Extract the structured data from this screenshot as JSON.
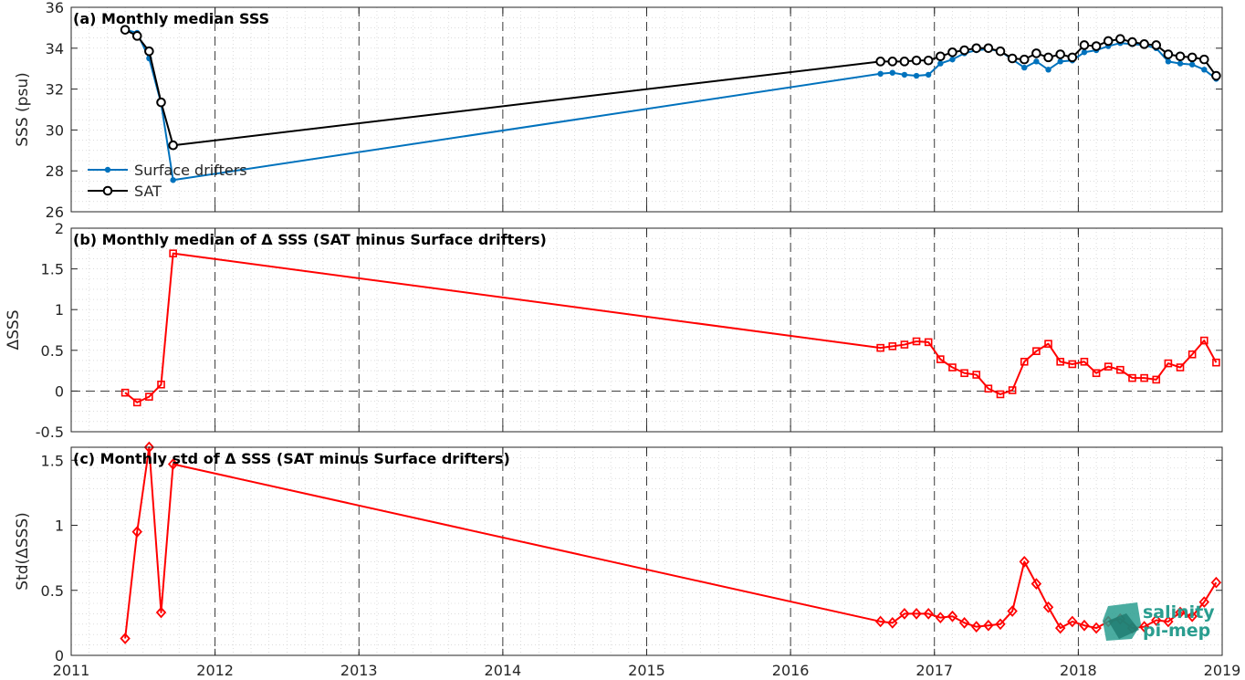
{
  "chart_data": [
    {
      "type": "line",
      "panel": "a",
      "title": "(a) Monthly median SSS",
      "xlabel": "",
      "ylabel": "SSS (psu)",
      "xlim": [
        "2011",
        "2019"
      ],
      "ylim": [
        26,
        36
      ],
      "yticks": [
        "26",
        "28",
        "30",
        "32",
        "34",
        "36"
      ],
      "grid": true,
      "legend": "left-center",
      "series": [
        {
          "name": "Surface drifters",
          "color": "#0072BD",
          "marker": "dot",
          "x": [
            "2011-05",
            "2011-06",
            "2011-07",
            "2011-08",
            "2011-09",
            "2016-08",
            "2016-09",
            "2016-10",
            "2016-11",
            "2016-12",
            "2017-01",
            "2017-02",
            "2017-03",
            "2017-04",
            "2017-05",
            "2017-06",
            "2017-07",
            "2017-08",
            "2017-09",
            "2017-10",
            "2017-11",
            "2017-12",
            "2018-01",
            "2018-02",
            "2018-03",
            "2018-04",
            "2018-05",
            "2018-06",
            "2018-07",
            "2018-08",
            "2018-09",
            "2018-10",
            "2018-11",
            "2018-12"
          ],
          "y": [
            34.9,
            34.75,
            33.5,
            31.3,
            27.55,
            32.75,
            32.8,
            32.7,
            32.65,
            32.7,
            33.25,
            33.45,
            33.75,
            33.9,
            33.95,
            33.85,
            33.45,
            33.05,
            33.35,
            32.95,
            33.35,
            33.4,
            33.8,
            33.9,
            34.1,
            34.25,
            34.2,
            34.15,
            34.0,
            33.35,
            33.25,
            33.2,
            32.95,
            32.5
          ]
        },
        {
          "name": "SAT",
          "color": "#000000",
          "marker": "circle",
          "x": [
            "2011-05",
            "2011-06",
            "2011-07",
            "2011-08",
            "2011-09",
            "2016-08",
            "2016-09",
            "2016-10",
            "2016-11",
            "2016-12",
            "2017-01",
            "2017-02",
            "2017-03",
            "2017-04",
            "2017-05",
            "2017-06",
            "2017-07",
            "2017-08",
            "2017-09",
            "2017-10",
            "2017-11",
            "2017-12",
            "2018-01",
            "2018-02",
            "2018-03",
            "2018-04",
            "2018-05",
            "2018-06",
            "2018-07",
            "2018-08",
            "2018-09",
            "2018-10",
            "2018-11",
            "2018-12"
          ],
          "y": [
            34.9,
            34.6,
            33.85,
            31.35,
            29.25,
            33.35,
            33.35,
            33.35,
            33.4,
            33.4,
            33.6,
            33.8,
            33.9,
            34.0,
            34.0,
            33.85,
            33.5,
            33.45,
            33.75,
            33.55,
            33.7,
            33.55,
            34.15,
            34.1,
            34.35,
            34.45,
            34.3,
            34.2,
            34.15,
            33.7,
            33.6,
            33.55,
            33.45,
            32.65
          ]
        }
      ]
    },
    {
      "type": "line",
      "panel": "b",
      "title": "(b) Monthly median of Δ SSS (SAT minus Surface drifters)",
      "xlabel": "",
      "ylabel": "ΔSSS",
      "xlim": [
        "2011",
        "2019"
      ],
      "ylim": [
        -0.5,
        2
      ],
      "yticks": [
        "-0.5",
        "0",
        "0.5",
        "1",
        "1.5",
        "2"
      ],
      "grid": true,
      "series": [
        {
          "color": "#FF0000",
          "marker": "square",
          "x": [
            "2011-05",
            "2011-06",
            "2011-07",
            "2011-08",
            "2011-09",
            "2016-08",
            "2016-09",
            "2016-10",
            "2016-11",
            "2016-12",
            "2017-01",
            "2017-02",
            "2017-03",
            "2017-04",
            "2017-05",
            "2017-06",
            "2017-07",
            "2017-08",
            "2017-09",
            "2017-10",
            "2017-11",
            "2017-12",
            "2018-01",
            "2018-02",
            "2018-03",
            "2018-04",
            "2018-05",
            "2018-06",
            "2018-07",
            "2018-08",
            "2018-09",
            "2018-10",
            "2018-11",
            "2018-12"
          ],
          "y": [
            -0.02,
            -0.14,
            -0.07,
            0.08,
            1.69,
            0.53,
            0.55,
            0.57,
            0.61,
            0.6,
            0.39,
            0.29,
            0.22,
            0.2,
            0.03,
            -0.04,
            0.01,
            0.36,
            0.49,
            0.58,
            0.36,
            0.33,
            0.36,
            0.22,
            0.3,
            0.26,
            0.16,
            0.16,
            0.14,
            0.34,
            0.29,
            0.45,
            0.62,
            0.35
          ]
        }
      ]
    },
    {
      "type": "line",
      "panel": "c",
      "title": "(c) Monthly std of Δ SSS (SAT minus Surface drifters)",
      "xlabel": "",
      "ylabel": "Std(ΔSSS)",
      "xlim": [
        "2011",
        "2019"
      ],
      "ylim": [
        0,
        1.6
      ],
      "yticks": [
        "0",
        "0.5",
        "1",
        "1.5"
      ],
      "xticks": [
        "2011",
        "2012",
        "2013",
        "2014",
        "2015",
        "2016",
        "2017",
        "2018",
        "2019"
      ],
      "grid": true,
      "series": [
        {
          "color": "#FF0000",
          "marker": "diamond",
          "x": [
            "2011-05",
            "2011-06",
            "2011-07",
            "2011-08",
            "2011-09",
            "2016-08",
            "2016-09",
            "2016-10",
            "2016-11",
            "2016-12",
            "2017-01",
            "2017-02",
            "2017-03",
            "2017-04",
            "2017-05",
            "2017-06",
            "2017-07",
            "2017-08",
            "2017-09",
            "2017-10",
            "2017-11",
            "2017-12",
            "2018-01",
            "2018-02",
            "2018-03",
            "2018-04",
            "2018-05",
            "2018-06",
            "2018-07",
            "2018-08",
            "2018-09",
            "2018-10",
            "2018-11",
            "2018-12"
          ],
          "y": [
            0.13,
            0.95,
            1.6,
            0.33,
            1.47,
            0.26,
            0.25,
            0.32,
            0.32,
            0.32,
            0.29,
            0.3,
            0.25,
            0.22,
            0.23,
            0.24,
            0.34,
            0.72,
            0.55,
            0.37,
            0.21,
            0.26,
            0.23,
            0.21,
            0.26,
            0.28,
            0.21,
            0.22,
            0.27,
            0.26,
            0.33,
            0.3,
            0.41,
            0.56
          ]
        }
      ]
    }
  ],
  "logo": {
    "line1": "salinity",
    "line2": "pi-mep",
    "color": "#2a9d8f"
  }
}
